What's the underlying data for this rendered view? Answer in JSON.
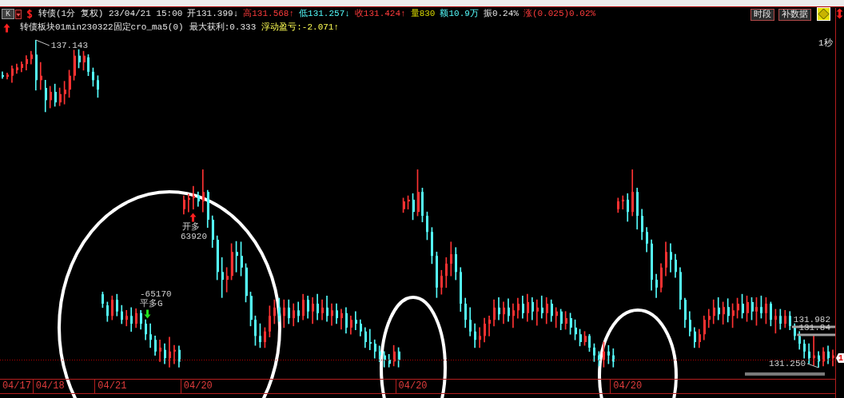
{
  "chart_data": {
    "type": "candlestick",
    "title": "转债(1分 复权) 23/04/21 15:00",
    "categories": [
      null,
      null,
      null,
      "04/17",
      null,
      null,
      null,
      null,
      null,
      null,
      "04/18",
      null,
      null,
      null,
      null,
      null,
      null,
      null,
      null,
      null,
      null,
      null,
      null,
      "04/21",
      null,
      null,
      null,
      null,
      null,
      null,
      null,
      null,
      null,
      null,
      null,
      null,
      null,
      null,
      null,
      null,
      null,
      "04/20",
      null,
      null,
      null,
      null,
      null,
      null,
      null,
      null,
      null,
      null,
      null,
      null,
      null,
      null,
      null,
      null,
      null,
      null,
      null,
      null,
      null,
      null,
      null,
      null,
      null,
      null,
      null,
      null,
      null,
      null,
      null,
      null,
      null,
      null,
      null,
      null,
      null,
      null,
      null,
      null,
      null,
      null,
      null,
      null,
      "04/20",
      null,
      null,
      null,
      null,
      null,
      null,
      null,
      null,
      null,
      null,
      null,
      null,
      null,
      null,
      null,
      null,
      null,
      null,
      null,
      null,
      null,
      null,
      null,
      null,
      null,
      null,
      null,
      null,
      null,
      null,
      null,
      null,
      null,
      null,
      null,
      null,
      null,
      null,
      null,
      null,
      null,
      null,
      null,
      null,
      "04/20",
      null,
      null,
      null,
      null,
      null,
      null,
      null,
      null,
      null,
      null,
      null,
      null,
      null,
      null,
      null,
      null,
      null,
      null,
      null,
      null,
      null,
      null,
      null,
      null,
      null,
      null,
      null,
      null,
      null,
      null,
      null,
      null,
      null,
      null,
      null,
      null,
      null,
      null,
      null,
      null,
      null,
      null,
      null
    ],
    "ohlc": [
      [
        136.51,
        136.57,
        136.45,
        136.48
      ],
      [
        136.48,
        136.55,
        136.44,
        136.52
      ],
      [
        136.5,
        136.68,
        136.38,
        136.63
      ],
      [
        136.6,
        136.71,
        136.54,
        136.65
      ],
      [
        136.64,
        136.75,
        136.57,
        136.71
      ],
      [
        136.71,
        136.86,
        136.6,
        136.8
      ],
      [
        136.8,
        136.94,
        136.71,
        136.88
      ],
      [
        136.88,
        137.143,
        136.24,
        136.42
      ],
      [
        136.42,
        136.74,
        136.25,
        136.5
      ],
      [
        136.28,
        136.42,
        135.85,
        136.06
      ],
      [
        136.06,
        136.31,
        135.92,
        136.21
      ],
      [
        136.21,
        136.35,
        135.95,
        136.02
      ],
      [
        136.02,
        136.28,
        135.96,
        136.17
      ],
      [
        136.17,
        136.4,
        135.99,
        136.25
      ],
      [
        136.25,
        136.6,
        136.11,
        136.5
      ],
      [
        136.5,
        136.96,
        136.42,
        136.86
      ],
      [
        136.86,
        136.97,
        136.64,
        136.74
      ],
      [
        136.74,
        136.94,
        136.6,
        136.86
      ],
      [
        136.83,
        136.88,
        136.5,
        136.57
      ],
      [
        136.57,
        136.64,
        136.31,
        136.42
      ],
      [
        136.42,
        136.5,
        136.11,
        136.25
      ],
      [
        132.57,
        132.61,
        132.33,
        132.4
      ],
      [
        132.37,
        132.43,
        132.08,
        132.18
      ],
      [
        132.18,
        132.54,
        132.11,
        132.47
      ],
      [
        132.47,
        132.57,
        132.18,
        132.26
      ],
      [
        132.26,
        132.37,
        132.04,
        132.11
      ],
      [
        132.11,
        132.28,
        132.0,
        132.18
      ],
      [
        132.18,
        132.33,
        131.9,
        132.04
      ],
      [
        132.04,
        132.31,
        131.97,
        132.23
      ],
      [
        132.23,
        132.28,
        131.94,
        132.04
      ],
      [
        132.04,
        132.11,
        131.75,
        131.85
      ],
      [
        131.85,
        132.04,
        131.61,
        131.75
      ],
      [
        131.75,
        131.82,
        131.47,
        131.54
      ],
      [
        131.54,
        131.75,
        131.36,
        131.61
      ],
      [
        131.57,
        131.68,
        131.32,
        131.42
      ],
      [
        131.42,
        131.8,
        131.26,
        131.54
      ],
      [
        131.54,
        131.65,
        131.32,
        131.57
      ],
      [
        131.57,
        131.64,
        131.26,
        131.36
      ],
      [
        134.1,
        134.34,
        134.01,
        134.27
      ],
      [
        134.27,
        134.37,
        134.05,
        134.3
      ],
      [
        134.3,
        134.51,
        134.1,
        134.34
      ],
      [
        134.34,
        134.41,
        134.15,
        134.24
      ],
      [
        134.24,
        134.81,
        134.05,
        134.41
      ],
      [
        134.41,
        134.44,
        133.77,
        133.91
      ],
      [
        133.91,
        133.98,
        133.41,
        133.55
      ],
      [
        133.55,
        133.62,
        132.83,
        132.97
      ],
      [
        132.97,
        133.23,
        132.51,
        132.83
      ],
      [
        132.83,
        133.05,
        132.61,
        132.9
      ],
      [
        132.9,
        133.48,
        132.83,
        133.33
      ],
      [
        133.33,
        133.52,
        132.97,
        133.26
      ],
      [
        133.26,
        133.51,
        132.9,
        133.05
      ],
      [
        133.05,
        133.12,
        132.43,
        132.54
      ],
      [
        132.54,
        132.61,
        132.0,
        132.11
      ],
      [
        132.11,
        132.18,
        131.65,
        131.82
      ],
      [
        131.82,
        132.04,
        131.61,
        131.71
      ],
      [
        131.71,
        131.97,
        131.61,
        131.9
      ],
      [
        131.9,
        132.36,
        131.8,
        132.18
      ],
      [
        132.18,
        132.47,
        132.04,
        132.33
      ],
      [
        132.33,
        132.5,
        132.08,
        132.18
      ],
      [
        132.18,
        132.47,
        131.97,
        132.33
      ],
      [
        132.33,
        132.47,
        132.04,
        132.14
      ],
      [
        132.14,
        132.4,
        132.0,
        132.28
      ],
      [
        132.28,
        132.43,
        132.07,
        132.18
      ],
      [
        132.18,
        132.57,
        132.11,
        132.47
      ],
      [
        132.47,
        132.54,
        132.14,
        132.26
      ],
      [
        132.26,
        132.51,
        132.04,
        132.4
      ],
      [
        132.4,
        132.57,
        132.11,
        132.23
      ],
      [
        132.23,
        132.47,
        132.11,
        132.33
      ],
      [
        132.33,
        132.54,
        132.08,
        132.18
      ],
      [
        132.18,
        132.4,
        132.01,
        132.28
      ],
      [
        132.28,
        132.4,
        132.04,
        132.14
      ],
      [
        132.14,
        132.3,
        131.94,
        132.23
      ],
      [
        132.23,
        132.33,
        131.87,
        131.97
      ],
      [
        131.97,
        132.18,
        131.85,
        132.11
      ],
      [
        132.11,
        132.26,
        131.93,
        132.04
      ],
      [
        132.04,
        132.11,
        131.82,
        131.9
      ],
      [
        131.9,
        131.97,
        131.61,
        131.71
      ],
      [
        131.71,
        131.94,
        131.57,
        131.68
      ],
      [
        131.68,
        131.75,
        131.42,
        131.54
      ],
      [
        131.54,
        131.64,
        131.36,
        131.47
      ],
      [
        131.47,
        131.54,
        131.26,
        131.39
      ],
      [
        131.39,
        131.49,
        131.26,
        131.32
      ],
      [
        131.36,
        131.65,
        131.28,
        131.54
      ],
      [
        131.54,
        131.61,
        131.26,
        131.39
      ],
      [
        134.1,
        134.3,
        134.04,
        134.24
      ],
      [
        134.24,
        134.34,
        134.1,
        134.27
      ],
      [
        134.27,
        134.38,
        133.91,
        134.05
      ],
      [
        134.05,
        134.81,
        133.98,
        134.41
      ],
      [
        134.41,
        134.48,
        133.87,
        133.98
      ],
      [
        133.98,
        134.05,
        133.55,
        133.69
      ],
      [
        133.69,
        133.77,
        133.12,
        133.26
      ],
      [
        133.26,
        133.33,
        132.51,
        132.69
      ],
      [
        132.69,
        133.0,
        132.57,
        132.9
      ],
      [
        132.9,
        133.23,
        132.69,
        133.12
      ],
      [
        133.12,
        133.51,
        132.9,
        133.29
      ],
      [
        133.29,
        133.41,
        132.83,
        132.97
      ],
      [
        132.97,
        133.05,
        132.26,
        132.4
      ],
      [
        132.4,
        132.5,
        131.97,
        132.11
      ],
      [
        132.11,
        132.33,
        131.82,
        131.9
      ],
      [
        131.9,
        132.04,
        131.61,
        131.75
      ],
      [
        131.75,
        131.97,
        131.61,
        131.82
      ],
      [
        131.82,
        132.14,
        131.71,
        132.04
      ],
      [
        132.04,
        132.18,
        131.82,
        132.11
      ],
      [
        132.11,
        132.47,
        132.0,
        132.33
      ],
      [
        132.33,
        132.51,
        132.11,
        132.21
      ],
      [
        132.21,
        132.43,
        132.04,
        132.33
      ],
      [
        132.33,
        132.49,
        132.08,
        132.18
      ],
      [
        132.18,
        132.4,
        131.97,
        132.28
      ],
      [
        132.28,
        132.5,
        132.14,
        132.4
      ],
      [
        132.4,
        132.54,
        132.14,
        132.23
      ],
      [
        132.23,
        132.57,
        132.08,
        132.43
      ],
      [
        132.43,
        132.51,
        132.11,
        132.26
      ],
      [
        132.26,
        132.47,
        132.01,
        132.33
      ],
      [
        132.33,
        132.54,
        132.14,
        132.23
      ],
      [
        132.23,
        132.51,
        132.04,
        132.4
      ],
      [
        132.4,
        132.47,
        132.08,
        132.18
      ],
      [
        132.18,
        132.33,
        131.97,
        132.26
      ],
      [
        132.26,
        132.3,
        131.93,
        132.04
      ],
      [
        132.04,
        132.26,
        131.94,
        132.14
      ],
      [
        132.14,
        132.23,
        131.85,
        131.97
      ],
      [
        131.97,
        132.11,
        131.75,
        131.85
      ],
      [
        131.85,
        131.94,
        131.64,
        131.71
      ],
      [
        131.71,
        131.9,
        131.65,
        131.82
      ],
      [
        131.82,
        131.85,
        131.54,
        131.61
      ],
      [
        131.61,
        131.68,
        131.36,
        131.47
      ],
      [
        131.47,
        131.54,
        131.28,
        131.39
      ],
      [
        131.39,
        131.71,
        131.26,
        131.54
      ],
      [
        131.54,
        131.65,
        131.32,
        131.47
      ],
      [
        131.47,
        131.59,
        131.26,
        131.36
      ],
      [
        134.1,
        134.3,
        134.04,
        134.24
      ],
      [
        134.24,
        134.34,
        134.1,
        134.27
      ],
      [
        134.27,
        134.38,
        133.88,
        134.05
      ],
      [
        134.05,
        134.81,
        133.98,
        134.41
      ],
      [
        134.41,
        134.48,
        133.74,
        133.98
      ],
      [
        133.98,
        134.1,
        133.55,
        133.69
      ],
      [
        133.69,
        133.77,
        133.33,
        133.48
      ],
      [
        133.48,
        133.55,
        132.64,
        132.83
      ],
      [
        132.83,
        132.93,
        132.51,
        132.69
      ],
      [
        132.69,
        133.12,
        132.61,
        133.05
      ],
      [
        133.05,
        133.51,
        132.9,
        133.33
      ],
      [
        133.33,
        133.48,
        132.97,
        133.19
      ],
      [
        133.19,
        133.29,
        132.87,
        132.97
      ],
      [
        132.97,
        133.05,
        132.3,
        132.47
      ],
      [
        132.47,
        132.5,
        131.97,
        132.11
      ],
      [
        132.11,
        132.26,
        131.82,
        131.9
      ],
      [
        131.9,
        131.97,
        131.61,
        131.71
      ],
      [
        131.71,
        131.94,
        131.61,
        131.85
      ],
      [
        131.85,
        132.18,
        131.75,
        132.11
      ],
      [
        132.11,
        132.3,
        131.97,
        132.18
      ],
      [
        132.18,
        132.47,
        132.04,
        132.33
      ],
      [
        132.33,
        132.51,
        132.11,
        132.21
      ],
      [
        132.21,
        132.43,
        132.03,
        132.34
      ],
      [
        132.34,
        132.49,
        132.07,
        132.18
      ],
      [
        132.18,
        132.4,
        131.97,
        132.28
      ],
      [
        132.28,
        132.5,
        132.14,
        132.4
      ],
      [
        132.4,
        132.57,
        132.14,
        132.23
      ],
      [
        132.23,
        132.54,
        132.08,
        132.43
      ],
      [
        132.43,
        132.51,
        132.11,
        132.26
      ],
      [
        132.26,
        132.51,
        132.01,
        132.34
      ],
      [
        132.34,
        132.54,
        132.14,
        132.23
      ],
      [
        132.23,
        132.51,
        132.04,
        132.4
      ],
      [
        132.4,
        132.43,
        132.0,
        132.11
      ],
      [
        132.11,
        132.3,
        131.87,
        132.18
      ],
      [
        132.18,
        132.3,
        131.94,
        132.04
      ],
      [
        132.04,
        132.28,
        131.97,
        132.18
      ],
      [
        132.18,
        132.26,
        131.93,
        132.0
      ],
      [
        132.0,
        132.04,
        131.75,
        131.82
      ],
      [
        131.82,
        131.9,
        131.58,
        131.68
      ],
      [
        131.68,
        131.75,
        131.42,
        131.54
      ],
      [
        131.54,
        131.68,
        131.32,
        131.42
      ],
      [
        131.42,
        131.82,
        131.29,
        131.47
      ],
      [
        131.47,
        131.54,
        131.25,
        131.36
      ],
      [
        131.36,
        131.61,
        131.28,
        131.54
      ],
      [
        131.54,
        131.64,
        131.32,
        131.42
      ],
      [
        131.42,
        131.57,
        131.28,
        131.47
      ]
    ],
    "colors": [
      "#54fcfc",
      "#ff3232",
      "#ff3232",
      "#ff3232",
      "#ff3232",
      "#ff3232",
      "#ff3232",
      "#54fcfc",
      "#ff3232",
      "#54fcfc",
      "#ff3232",
      "#54fcfc",
      "#ff3232",
      "#ff3232",
      "#ff3232",
      "#ff3232",
      "#54fcfc",
      "#ff3232",
      "#54fcfc",
      "#54fcfc",
      "#54fcfc",
      "#54fcfc",
      "#54fcfc",
      "#ff3232",
      "#54fcfc",
      "#54fcfc",
      "#ff3232",
      "#54fcfc",
      "#ff3232",
      "#54fcfc",
      "#54fcfc",
      "#54fcfc",
      "#54fcfc",
      "#ff3232",
      "#54fcfc",
      "#ff3232",
      "#ff3232",
      "#54fcfc",
      "#ff3232",
      "#ff3232",
      "#ff3232",
      "#54fcfc",
      "#ff3232",
      "#54fcfc",
      "#54fcfc",
      "#54fcfc",
      "#54fcfc",
      "#ff3232",
      "#ff3232",
      "#54fcfc",
      "#54fcfc",
      "#54fcfc",
      "#54fcfc",
      "#54fcfc",
      "#54fcfc",
      "#ff3232",
      "#ff3232",
      "#ff3232",
      "#54fcfc",
      "#ff3232",
      "#54fcfc",
      "#ff3232",
      "#54fcfc",
      "#ff3232",
      "#54fcfc",
      "#ff3232",
      "#54fcfc",
      "#ff3232",
      "#54fcfc",
      "#ff3232",
      "#54fcfc",
      "#ff3232",
      "#54fcfc",
      "#ff3232",
      "#54fcfc",
      "#54fcfc",
      "#54fcfc",
      "#54fcfc",
      "#54fcfc",
      "#54fcfc",
      "#54fcfc",
      "#54fcfc",
      "#ff3232",
      "#54fcfc",
      "#ff3232",
      "#ff3232",
      "#54fcfc",
      "#ff3232",
      "#54fcfc",
      "#54fcfc",
      "#54fcfc",
      "#54fcfc",
      "#ff3232",
      "#ff3232",
      "#ff3232",
      "#54fcfc",
      "#54fcfc",
      "#54fcfc",
      "#54fcfc",
      "#54fcfc",
      "#ff3232",
      "#ff3232",
      "#ff3232",
      "#ff3232",
      "#54fcfc",
      "#ff3232",
      "#54fcfc",
      "#ff3232",
      "#ff3232",
      "#54fcfc",
      "#ff3232",
      "#54fcfc",
      "#ff3232",
      "#54fcfc",
      "#ff3232",
      "#54fcfc",
      "#ff3232",
      "#54fcfc",
      "#ff3232",
      "#54fcfc",
      "#54fcfc",
      "#54fcfc",
      "#ff3232",
      "#54fcfc",
      "#54fcfc",
      "#54fcfc",
      "#ff3232",
      "#54fcfc",
      "#54fcfc",
      "#ff3232",
      "#ff3232",
      "#54fcfc",
      "#ff3232",
      "#54fcfc",
      "#54fcfc",
      "#54fcfc",
      "#54fcfc",
      "#54fcfc",
      "#ff3232",
      "#ff3232",
      "#54fcfc",
      "#54fcfc",
      "#54fcfc",
      "#54fcfc",
      "#54fcfc",
      "#54fcfc",
      "#ff3232",
      "#ff3232",
      "#ff3232",
      "#ff3232",
      "#54fcfc",
      "#ff3232",
      "#54fcfc",
      "#ff3232",
      "#ff3232",
      "#54fcfc",
      "#ff3232",
      "#54fcfc",
      "#ff3232",
      "#54fcfc",
      "#ff3232",
      "#54fcfc",
      "#ff3232",
      "#54fcfc",
      "#ff3232",
      "#54fcfc",
      "#54fcfc",
      "#54fcfc",
      "#54fcfc",
      "#54fcfc",
      "#ff3232",
      "#54fcfc",
      "#ff3232",
      "#54fcfc",
      "#ff3232"
    ],
    "ref_lines": [
      {
        "axis": "y",
        "value": 131.39,
        "color": "#b40000",
        "line_style": "dotted"
      },
      {
        "axis": "y",
        "value": 131.982,
        "label": "131.982",
        "color": "#a0a0a0"
      },
      {
        "axis": "y",
        "value": 131.84,
        "label": "131.84",
        "color": "#a0a0a0"
      }
    ],
    "annotations": [
      "K",
      "开131.399↓",
      "高131.568↑",
      "低131.257↓",
      "收131.424↑",
      "量830",
      "额10.9万",
      "振0.24%",
      "涨(0.025)0.02%",
      "时段",
      "补数据",
      "转债板块01min230322固定cro_ma5(0)",
      "最大获利:0.333",
      "浮动盈亏:-2.071↑",
      "1秒",
      "137.143",
      "131.250",
      "开多",
      "63920",
      "-65170",
      "平多G",
      {
        "text": "1",
        "y": 131.424
      }
    ]
  }
}
